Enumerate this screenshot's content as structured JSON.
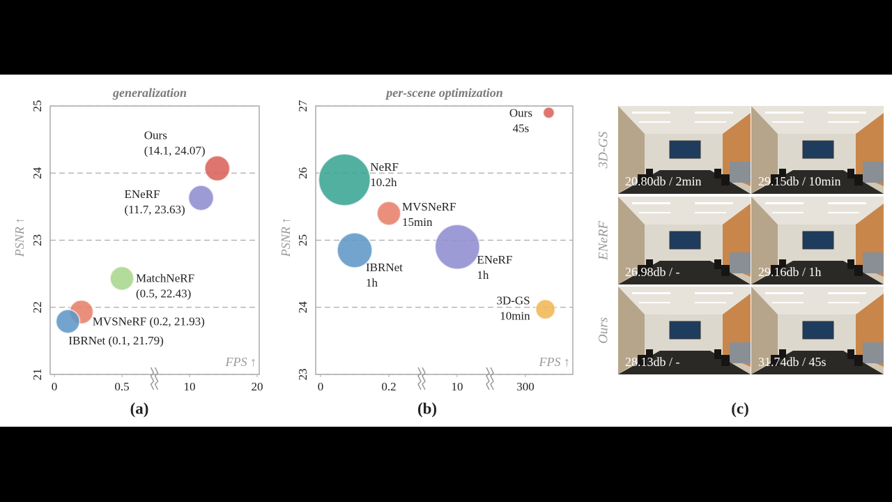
{
  "chart_data": [
    {
      "type": "bubble",
      "title": "generalization",
      "caption": "(a)",
      "ylabel": "PSNR ↑",
      "xlabel": "FPS ↑",
      "xlim": [
        0,
        20
      ],
      "xticks": [
        0,
        0.5,
        10,
        20
      ],
      "x_breaks": [
        [
          0.5,
          10
        ]
      ],
      "ylim": [
        21,
        25
      ],
      "yticks": [
        21,
        22,
        23,
        24,
        25
      ],
      "grid": true,
      "points": [
        {
          "labels": [
            "Ours",
            "(14.1, 24.07)"
          ],
          "x": 14.1,
          "y": 24.07,
          "size": 18,
          "color": "#d9625b"
        },
        {
          "labels": [
            "ENeRF",
            "(11.7, 23.63)"
          ],
          "x": 11.7,
          "y": 23.63,
          "size": 18,
          "color": "#8f8dd0"
        },
        {
          "labels": [
            "MatchNeRF",
            "(0.5, 22.43)"
          ],
          "x": 0.5,
          "y": 22.43,
          "size": 17,
          "color": "#a9d68e"
        },
        {
          "labels": [
            "MVSNeRF (0.2, 21.93)"
          ],
          "x": 0.2,
          "y": 21.93,
          "size": 17,
          "color": "#e8806b"
        },
        {
          "labels": [
            "IBRNet (0.1, 21.79)"
          ],
          "x": 0.1,
          "y": 21.79,
          "size": 17,
          "color": "#5f97c6"
        }
      ]
    },
    {
      "type": "bubble",
      "title": "per-scene optimization",
      "caption": "(b)",
      "ylabel": "PSNR ↑",
      "xlabel": "FPS ↑",
      "xlim": [
        0,
        500
      ],
      "xticks": [
        0,
        0.2,
        10,
        300
      ],
      "x_breaks": [
        [
          0.2,
          10
        ],
        [
          10,
          300
        ]
      ],
      "ylim": [
        23,
        27
      ],
      "yticks": [
        23,
        24,
        25,
        26,
        27
      ],
      "grid": true,
      "points": [
        {
          "labels": [
            "Ours",
            "45s"
          ],
          "x": 405,
          "y": 26.9,
          "size": 8,
          "color": "#d9625b"
        },
        {
          "labels": [
            "NeRF",
            "10.2h"
          ],
          "x": 0.07,
          "y": 25.9,
          "size": 37,
          "color": "#3aa593"
        },
        {
          "labels": [
            "MVSNeRF",
            "15min"
          ],
          "x": 0.2,
          "y": 25.4,
          "size": 17,
          "color": "#e8806b"
        },
        {
          "labels": [
            "IBRNet",
            "1h"
          ],
          "x": 0.1,
          "y": 24.85,
          "size": 25,
          "color": "#5f97c6"
        },
        {
          "labels": [
            "ENeRF",
            "1h"
          ],
          "x": 11,
          "y": 24.9,
          "size": 32,
          "color": "#8f8dd0"
        },
        {
          "labels": [
            "3D-GS",
            "10min"
          ],
          "x": 390,
          "y": 23.97,
          "size": 14,
          "color": "#f0b656"
        }
      ]
    }
  ],
  "panel_c": {
    "caption": "(c)",
    "rows": [
      {
        "label": "3D-GS",
        "cells": [
          "20.80db / 2min",
          "29.15db / 10min"
        ]
      },
      {
        "label": "ENeRF",
        "cells": [
          "26.98db / -",
          "29.16db / 1h"
        ]
      },
      {
        "label": "Ours",
        "cells": [
          "28.13db / -",
          "31.74db / 45s"
        ]
      }
    ]
  }
}
